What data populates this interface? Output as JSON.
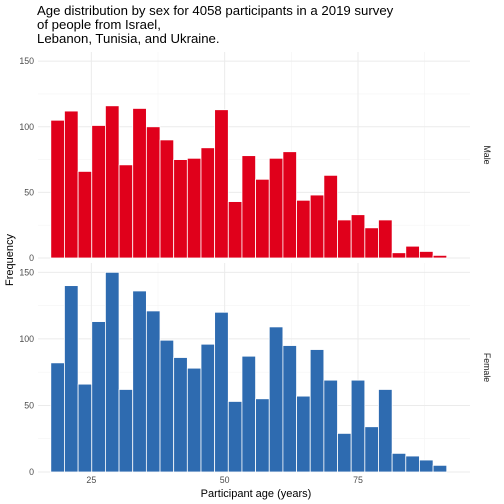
{
  "chart_data": {
    "type": "bar",
    "title_lines": [
      "Age distribution by sex for 4058 participants in a 2019 survey",
      "of people from Israel,",
      "Lebanon, Tunisia, and Ukraine."
    ],
    "xlabel": "Participant age (years)",
    "ylabel": "Frequency",
    "x_ticks": [
      25,
      50,
      75
    ],
    "y_ticks": [
      0,
      50,
      100,
      150
    ],
    "xlim": [
      15,
      96
    ],
    "ylim": [
      0,
      157
    ],
    "bin_start": 17.4,
    "bin_width": 2.56,
    "grid": true,
    "facets": [
      {
        "name": "Male",
        "color": "#e0001b",
        "values": [
          105,
          112,
          66,
          101,
          116,
          71,
          114,
          100,
          90,
          75,
          76,
          84,
          113,
          43,
          78,
          60,
          76,
          81,
          44,
          48,
          63,
          29,
          33,
          23,
          29,
          4,
          9,
          5,
          2
        ]
      },
      {
        "name": "Female",
        "color": "#2e6bb0",
        "values": [
          82,
          140,
          66,
          113,
          150,
          62,
          136,
          121,
          99,
          86,
          78,
          96,
          120,
          53,
          87,
          55,
          109,
          95,
          57,
          92,
          69,
          29,
          69,
          34,
          62,
          14,
          12,
          9,
          5
        ]
      }
    ]
  }
}
